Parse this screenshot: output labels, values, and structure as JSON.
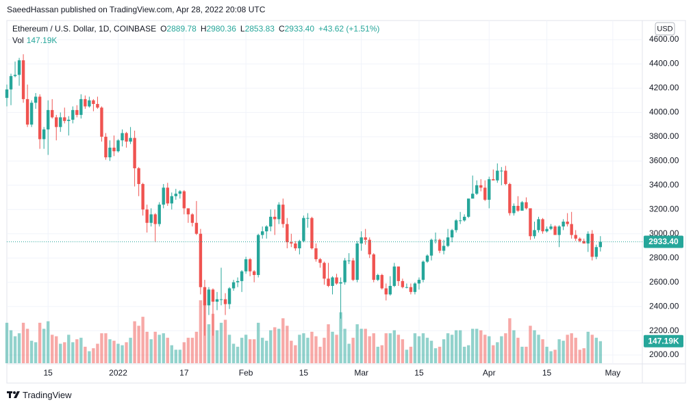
{
  "published": "SaeedHassan published on TradingView.com, Apr 28, 2022 20:08 UTC",
  "footer": "TradingView",
  "legend": {
    "symbol": "Ethereum / U.S. Dollar, 1D, COINBASE",
    "items": [
      {
        "key": "O",
        "value": "2889.78"
      },
      {
        "key": "H",
        "value": "2980.36"
      },
      {
        "key": "L",
        "value": "2853.83"
      },
      {
        "key": "C",
        "value": "2933.40"
      }
    ],
    "change": "+43.62 (+1.51%)",
    "vol_key": "Vol",
    "vol_value": "147.19K"
  },
  "chart_data": {
    "type": "candlestick",
    "currency": "USD",
    "up_color": "#26a69a",
    "down_color": "#ef5350",
    "grid": true,
    "ylim": [
      1927,
      4758
    ],
    "yticks": [
      {
        "value": 2000,
        "label": "2000.00"
      },
      {
        "value": 2200,
        "label": "2200.00"
      },
      {
        "value": 2400,
        "label": "2400.00"
      },
      {
        "value": 2600,
        "label": "2600.00"
      },
      {
        "value": 2800,
        "label": "2800.00"
      },
      {
        "value": 3000,
        "label": "3000.00"
      },
      {
        "value": 3200,
        "label": "3200.00"
      },
      {
        "value": 3400,
        "label": "3400.00"
      },
      {
        "value": 3600,
        "label": "3600.00"
      },
      {
        "value": 3800,
        "label": "3800.00"
      },
      {
        "value": 4000,
        "label": "4000.00"
      },
      {
        "value": 4200,
        "label": "4200.00"
      },
      {
        "value": 4400,
        "label": "4400.00"
      },
      {
        "value": 4600,
        "label": "4600.00"
      }
    ],
    "xlim": [
      "2021-12-05",
      "2022-05-08"
    ],
    "xticks": [
      {
        "value": "2021-12-15",
        "label": "15"
      },
      {
        "value": "2022-01-01",
        "label": "2022"
      },
      {
        "value": "2022-01-17",
        "label": "17"
      },
      {
        "value": "2022-02-01",
        "label": "Feb"
      },
      {
        "value": "2022-02-15",
        "label": "15"
      },
      {
        "value": "2022-03-01",
        "label": "Mar"
      },
      {
        "value": "2022-03-15",
        "label": "15"
      },
      {
        "value": "2022-04-01",
        "label": "Apr"
      },
      {
        "value": "2022-04-15",
        "label": "15"
      },
      {
        "value": "2022-05-01",
        "label": "May"
      }
    ],
    "x": [
      "2021-12-05",
      "2021-12-06",
      "2021-12-07",
      "2021-12-08",
      "2021-12-09",
      "2021-12-10",
      "2021-12-11",
      "2021-12-12",
      "2021-12-13",
      "2021-12-14",
      "2021-12-15",
      "2021-12-16",
      "2021-12-17",
      "2021-12-18",
      "2021-12-19",
      "2021-12-20",
      "2021-12-21",
      "2021-12-22",
      "2021-12-23",
      "2021-12-24",
      "2021-12-25",
      "2021-12-26",
      "2021-12-27",
      "2021-12-28",
      "2021-12-29",
      "2021-12-30",
      "2021-12-31",
      "2022-01-01",
      "2022-01-02",
      "2022-01-03",
      "2022-01-04",
      "2022-01-05",
      "2022-01-06",
      "2022-01-07",
      "2022-01-08",
      "2022-01-09",
      "2022-01-10",
      "2022-01-11",
      "2022-01-12",
      "2022-01-13",
      "2022-01-14",
      "2022-01-15",
      "2022-01-16",
      "2022-01-17",
      "2022-01-18",
      "2022-01-19",
      "2022-01-20",
      "2022-01-21",
      "2022-01-22",
      "2022-01-23",
      "2022-01-24",
      "2022-01-25",
      "2022-01-26",
      "2022-01-27",
      "2022-01-28",
      "2022-01-29",
      "2022-01-30",
      "2022-01-31",
      "2022-02-01",
      "2022-02-02",
      "2022-02-03",
      "2022-02-04",
      "2022-02-05",
      "2022-02-06",
      "2022-02-07",
      "2022-02-08",
      "2022-02-09",
      "2022-02-10",
      "2022-02-11",
      "2022-02-12",
      "2022-02-13",
      "2022-02-14",
      "2022-02-15",
      "2022-02-16",
      "2022-02-17",
      "2022-02-18",
      "2022-02-19",
      "2022-02-20",
      "2022-02-21",
      "2022-02-22",
      "2022-02-23",
      "2022-02-24",
      "2022-02-25",
      "2022-02-26",
      "2022-02-27",
      "2022-02-28",
      "2022-03-01",
      "2022-03-02",
      "2022-03-03",
      "2022-03-04",
      "2022-03-05",
      "2022-03-06",
      "2022-03-07",
      "2022-03-08",
      "2022-03-09",
      "2022-03-10",
      "2022-03-11",
      "2022-03-12",
      "2022-03-13",
      "2022-03-14",
      "2022-03-15",
      "2022-03-16",
      "2022-03-17",
      "2022-03-18",
      "2022-03-19",
      "2022-03-20",
      "2022-03-21",
      "2022-03-22",
      "2022-03-23",
      "2022-03-24",
      "2022-03-25",
      "2022-03-26",
      "2022-03-27",
      "2022-03-28",
      "2022-03-29",
      "2022-03-30",
      "2022-03-31",
      "2022-04-01",
      "2022-04-02",
      "2022-04-03",
      "2022-04-04",
      "2022-04-05",
      "2022-04-06",
      "2022-04-07",
      "2022-04-08",
      "2022-04-09",
      "2022-04-10",
      "2022-04-11",
      "2022-04-12",
      "2022-04-13",
      "2022-04-14",
      "2022-04-15",
      "2022-04-16",
      "2022-04-17",
      "2022-04-18",
      "2022-04-19",
      "2022-04-20",
      "2022-04-21",
      "2022-04-22",
      "2022-04-23",
      "2022-04-24",
      "2022-04-25",
      "2022-04-26",
      "2022-04-27",
      "2022-04-28"
    ],
    "open": [
      4120,
      4190,
      4300,
      4310,
      4430,
      4110,
      3900,
      4080,
      4130,
      3780,
      3860,
      4020,
      3960,
      3880,
      3960,
      3930,
      3940,
      4020,
      3980,
      4110,
      4050,
      4100,
      4070,
      4040,
      3800,
      3630,
      3710,
      3680,
      3770,
      3830,
      3760,
      3790,
      3540,
      3410,
      3200,
      3090,
      3160,
      3080,
      3240,
      3380,
      3250,
      3310,
      3330,
      3350,
      3210,
      3160,
      3090,
      3000,
      2560,
      2410,
      2540,
      2440,
      2460,
      2460,
      2420,
      2550,
      2600,
      2610,
      2690,
      2790,
      2690,
      2660,
      2990,
      3020,
      3060,
      3140,
      3120,
      3240,
      3080,
      2930,
      2920,
      2880,
      2940,
      3130,
      3130,
      2880,
      2790,
      2760,
      2630,
      2570,
      2640,
      2590,
      2600,
      2780,
      2780,
      2620,
      2920,
      2970,
      2950,
      2830,
      2620,
      2660,
      2550,
      2500,
      2570,
      2730,
      2610,
      2560,
      2560,
      2520,
      2590,
      2620,
      2770,
      2820,
      2950,
      2950,
      2860,
      2900,
      2970,
      3030,
      3110,
      3110,
      3140,
      3290,
      3330,
      3400,
      3380,
      3280,
      3450,
      3440,
      3520,
      3520,
      3410,
      3170,
      3230,
      3190,
      3260,
      3210,
      2980,
      3030,
      3120,
      3020,
      3040,
      3060,
      2990,
      3060,
      3100,
      3080,
      2990,
      2960,
      2940,
      2920,
      3000,
      2810,
      2889.78
    ],
    "high": [
      4230,
      4320,
      4420,
      4450,
      4480,
      4230,
      4100,
      4160,
      4150,
      3880,
      4100,
      4110,
      3980,
      4000,
      4040,
      3970,
      4050,
      4060,
      4150,
      4140,
      4130,
      4110,
      4130,
      4050,
      3830,
      3770,
      3810,
      3780,
      3860,
      3840,
      3880,
      3850,
      3550,
      3420,
      3240,
      3210,
      3170,
      3260,
      3410,
      3420,
      3340,
      3370,
      3360,
      3360,
      3210,
      3170,
      3270,
      3040,
      2620,
      2560,
      2550,
      2520,
      2720,
      2510,
      2560,
      2620,
      2640,
      2700,
      2810,
      2800,
      2700,
      3000,
      3060,
      3070,
      3200,
      3200,
      3260,
      3290,
      3130,
      3000,
      2940,
      2950,
      3150,
      3170,
      3140,
      2920,
      2800,
      2770,
      2760,
      2650,
      2670,
      2640,
      2800,
      2840,
      2800,
      2940,
      3020,
      3040,
      2970,
      2840,
      2670,
      2670,
      2590,
      2650,
      2760,
      2730,
      2630,
      2590,
      2590,
      2600,
      2640,
      2780,
      2830,
      2960,
      3010,
      2960,
      2950,
      3040,
      3040,
      3120,
      3180,
      3160,
      3290,
      3480,
      3440,
      3450,
      3440,
      3470,
      3530,
      3580,
      3550,
      3560,
      3420,
      3250,
      3310,
      3270,
      3300,
      3210,
      3100,
      3140,
      3130,
      3060,
      3080,
      3070,
      3070,
      3120,
      3170,
      3180,
      3030,
      2970,
      2960,
      3020,
      3030,
      2910,
      2980.36
    ],
    "low": [
      4050,
      4060,
      4290,
      4220,
      4080,
      3880,
      3880,
      4030,
      3700,
      3700,
      3650,
      3950,
      3770,
      3840,
      3910,
      3810,
      3910,
      3960,
      3950,
      4030,
      4040,
      4010,
      4030,
      3760,
      3610,
      3600,
      3640,
      3670,
      3720,
      3710,
      3740,
      3390,
      3310,
      3150,
      3010,
      3060,
      2930,
      3060,
      3210,
      3230,
      3200,
      3280,
      3290,
      3160,
      3090,
      3060,
      2990,
      2500,
      2160,
      2330,
      2160,
      2370,
      2410,
      2330,
      2380,
      2530,
      2560,
      2520,
      2670,
      2650,
      2600,
      2640,
      2960,
      2960,
      3020,
      2990,
      3080,
      3050,
      2880,
      2890,
      2860,
      2830,
      2930,
      3050,
      2870,
      2770,
      2720,
      2580,
      2560,
      2500,
      2580,
      2300,
      2580,
      2750,
      2610,
      2600,
      2860,
      2910,
      2800,
      2600,
      2610,
      2540,
      2450,
      2490,
      2560,
      2570,
      2550,
      2550,
      2500,
      2500,
      2540,
      2600,
      2760,
      2780,
      2920,
      2840,
      2830,
      2890,
      2930,
      3010,
      3080,
      3100,
      3130,
      3290,
      3320,
      3350,
      3270,
      3210,
      3440,
      3420,
      3400,
      3400,
      3150,
      3150,
      3180,
      3190,
      3200,
      2950,
      2960,
      3010,
      3000,
      3010,
      3030,
      2990,
      2890,
      3030,
      3060,
      2960,
      2940,
      2930,
      2920,
      2850,
      2780,
      2790,
      2853.83
    ],
    "close": [
      4190,
      4300,
      4310,
      4430,
      4110,
      3900,
      4080,
      4130,
      3780,
      3860,
      4020,
      3960,
      3880,
      3960,
      3930,
      3940,
      4020,
      3980,
      4110,
      4050,
      4100,
      4070,
      4040,
      3800,
      3630,
      3710,
      3680,
      3770,
      3830,
      3760,
      3790,
      3540,
      3410,
      3200,
      3090,
      3160,
      3080,
      3240,
      3380,
      3250,
      3310,
      3330,
      3350,
      3210,
      3160,
      3090,
      3000,
      2560,
      2410,
      2540,
      2440,
      2460,
      2460,
      2420,
      2550,
      2600,
      2610,
      2690,
      2790,
      2690,
      2660,
      2990,
      3020,
      3060,
      3140,
      3120,
      3240,
      3080,
      2930,
      2920,
      2880,
      2940,
      3130,
      3130,
      2880,
      2790,
      2760,
      2630,
      2570,
      2640,
      2590,
      2600,
      2780,
      2780,
      2620,
      2920,
      2970,
      2950,
      2830,
      2620,
      2660,
      2550,
      2500,
      2570,
      2730,
      2610,
      2560,
      2560,
      2520,
      2590,
      2620,
      2770,
      2820,
      2950,
      2950,
      2860,
      2900,
      2970,
      3030,
      3110,
      3110,
      3140,
      3290,
      3330,
      3400,
      3380,
      3280,
      3450,
      3440,
      3520,
      3520,
      3410,
      3170,
      3230,
      3190,
      3260,
      3210,
      2980,
      3030,
      3120,
      3020,
      3040,
      3060,
      2990,
      3060,
      3100,
      3080,
      2990,
      2960,
      2940,
      2920,
      3000,
      2810,
      2890,
      2933.4
    ],
    "volume": [
      270,
      220,
      180,
      200,
      270,
      230,
      150,
      140,
      270,
      230,
      280,
      190,
      180,
      130,
      140,
      190,
      140,
      160,
      170,
      110,
      80,
      100,
      130,
      200,
      200,
      160,
      150,
      130,
      120,
      140,
      170,
      280,
      250,
      310,
      210,
      160,
      210,
      190,
      200,
      170,
      120,
      90,
      90,
      140,
      170,
      170,
      210,
      420,
      400,
      260,
      330,
      220,
      270,
      290,
      190,
      130,
      110,
      170,
      190,
      160,
      160,
      270,
      170,
      150,
      220,
      240,
      230,
      300,
      250,
      150,
      120,
      190,
      200,
      170,
      210,
      180,
      110,
      170,
      260,
      210,
      190,
      340,
      230,
      130,
      170,
      260,
      230,
      230,
      180,
      200,
      110,
      120,
      200,
      200,
      220,
      190,
      160,
      90,
      110,
      200,
      180,
      200,
      170,
      150,
      100,
      110,
      160,
      200,
      190,
      220,
      220,
      110,
      120,
      230,
      230,
      220,
      190,
      180,
      120,
      140,
      180,
      200,
      300,
      220,
      170,
      110,
      110,
      250,
      220,
      190,
      160,
      110,
      80,
      90,
      160,
      150,
      190,
      200,
      170,
      90,
      100,
      210,
      190,
      170,
      147.19
    ]
  }
}
